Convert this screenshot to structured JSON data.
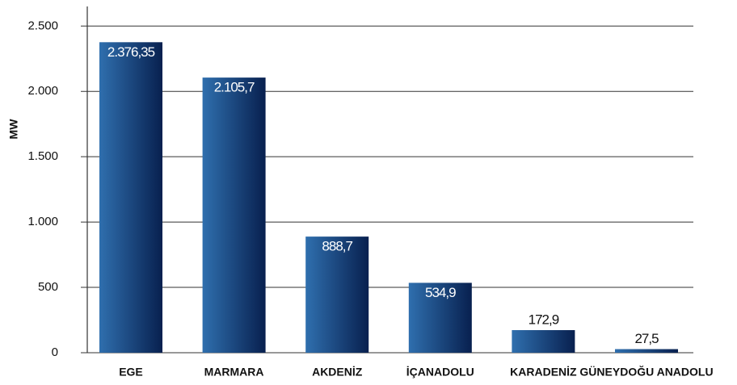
{
  "chart_data": {
    "type": "bar",
    "y_label": "MW",
    "categories": [
      "EGE",
      "MARMARA",
      "AKDENİZ",
      "İÇANADOLU",
      "KARADENİZ",
      "GÜNEYDOĞU ANADOLU"
    ],
    "values": [
      2376.35,
      2105.7,
      888.7,
      534.9,
      172.9,
      27.5
    ],
    "value_labels": [
      "2.376,35",
      "2.105,7",
      "888,7",
      "534,9",
      "172,9",
      "27,5"
    ],
    "color": "#08204f",
    "ylim": [
      0,
      2650
    ],
    "yticks": [
      0,
      500,
      {
        "value": 1000,
        "label": "1.000"
      },
      {
        "value": 1500,
        "label": "1.500"
      },
      {
        "value": 2000,
        "label": "2.000"
      },
      {
        "value": 2500,
        "label": "2.500"
      }
    ],
    "grid": true
  }
}
